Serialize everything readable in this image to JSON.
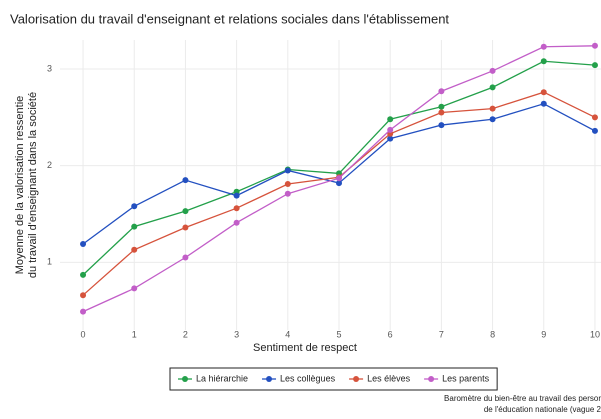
{
  "chart_data": {
    "type": "line",
    "title": "Valorisation du travail d'enseignant et relations sociales dans l'établissement",
    "xlabel": "Sentiment de respect",
    "ylabel": [
      "Moyenne de la valorisation ressentie",
      "du travail d'enseignant dans la société"
    ],
    "caption": [
      "Baromètre du bien-être au travail des persor",
      "de l'éducation nationale (vague 2"
    ],
    "x": [
      0,
      1,
      2,
      3,
      4,
      5,
      6,
      7,
      8,
      9,
      10
    ],
    "xlim": [
      -0.45,
      10.45
    ],
    "xticks": [
      0,
      1,
      2,
      3,
      4,
      5,
      6,
      7,
      8,
      9,
      10
    ],
    "ylim": [
      0.3,
      3.3
    ],
    "yticks": [
      1,
      2,
      3
    ],
    "grid": true,
    "legend": "bottom",
    "series": [
      {
        "name": "La hiérarchie",
        "color": "#23a04a",
        "values": [
          0.87,
          1.37,
          1.53,
          1.73,
          1.96,
          1.92,
          2.48,
          2.61,
          2.81,
          3.08,
          3.04
        ]
      },
      {
        "name": "Les collègues",
        "color": "#2350c0",
        "values": [
          1.19,
          1.58,
          1.85,
          1.69,
          1.95,
          1.82,
          2.28,
          2.42,
          2.48,
          2.64,
          2.36
        ]
      },
      {
        "name": "Les élèves",
        "color": "#d6533c",
        "values": [
          0.66,
          1.13,
          1.36,
          1.56,
          1.81,
          1.88,
          2.33,
          2.55,
          2.59,
          2.76,
          2.5
        ]
      },
      {
        "name": "Les parents",
        "color": "#c25ec8",
        "values": [
          0.49,
          0.73,
          1.05,
          1.41,
          1.71,
          1.87,
          2.37,
          2.77,
          2.98,
          3.23,
          3.24
        ]
      }
    ]
  }
}
